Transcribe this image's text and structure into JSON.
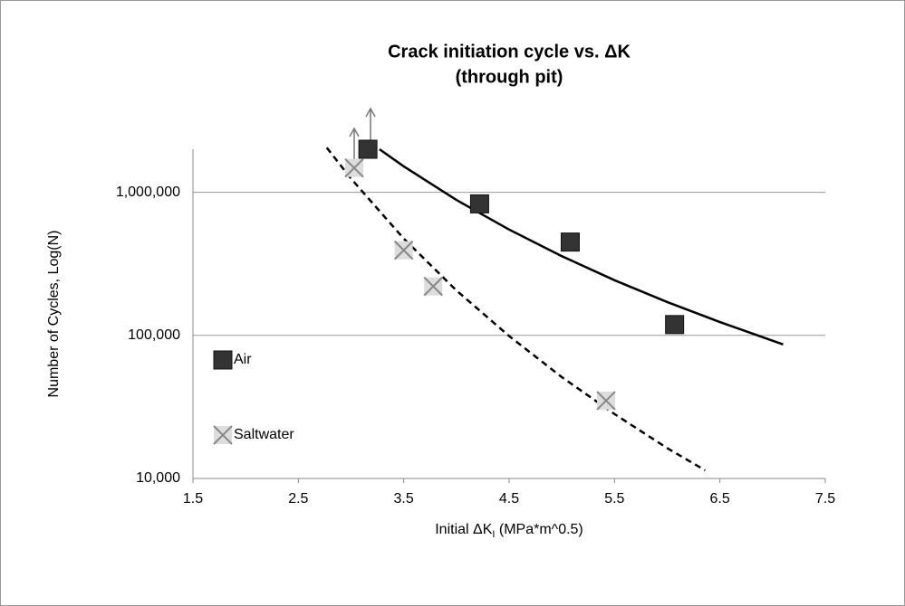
{
  "chart_data": {
    "type": "scatter",
    "title": [
      "Crack initiation cycle vs. ΔK",
      "(through pit)"
    ],
    "x_label": [
      "Initial ΔK",
      "I",
      " (MPa*m^0.5)"
    ],
    "y_label": "Number of Cycles, Log(N)",
    "log_y": true,
    "grid": true,
    "legend": "left",
    "xlim": [
      1.5,
      7.5
    ],
    "xticks": [
      1.5,
      2.5,
      3.5,
      4.5,
      5.5,
      6.5,
      7.5
    ],
    "ylim": [
      10000,
      2000000
    ],
    "yticks": [
      {
        "value": 10000,
        "label": "10,000"
      },
      {
        "value": 100000,
        "label": "100,000"
      },
      {
        "value": 1000000,
        "label": "1,000,000"
      }
    ],
    "series": [
      {
        "name": "Air",
        "color": "#333333",
        "marker": "square",
        "x": [
          3.16,
          4.22,
          5.08,
          6.07
        ],
        "values": [
          2000000,
          830000,
          449000,
          119000
        ],
        "trend_x": [
          3.27,
          3.5,
          4,
          4.5,
          5,
          5.5,
          6,
          6.5,
          7.1
        ],
        "trend_values": [
          2000000,
          1518000,
          884000,
          549000,
          358000,
          243000,
          171000,
          124000,
          86500
        ],
        "trend_style": "solid"
      },
      {
        "name": "Saltwater",
        "color": "#888888",
        "marker": "x",
        "x": [
          3.03,
          3.5,
          3.78,
          5.42
        ],
        "values": [
          1480000,
          394000,
          220000,
          35000
        ],
        "trend_x": [
          2.77,
          3,
          3.5,
          4,
          4.5,
          5,
          5.5,
          6,
          6.36
        ],
        "trend_values": [
          2050000,
          1246000,
          475000,
          206000,
          99000,
          51100,
          28200,
          16300,
          11400
        ],
        "trend_style": "dashed"
      }
    ]
  }
}
